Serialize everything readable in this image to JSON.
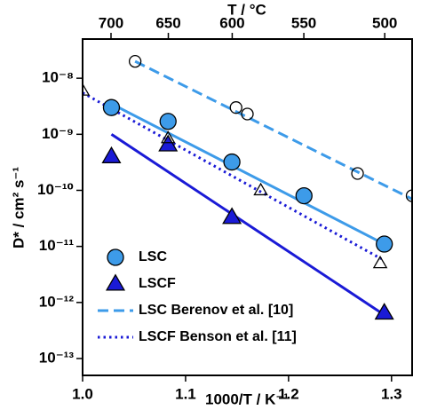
{
  "chart_data": {
    "type": "scatter",
    "xlabel": "1000/T / K⁻¹",
    "ylabel": "D* / cm² s⁻¹",
    "x2label": "T / °C",
    "xlim": [
      1.0,
      1.32
    ],
    "xticks": [
      {
        "value": 1.0,
        "label": "1.0"
      },
      1.1,
      1.2,
      1.3
    ],
    "x2ticks": [
      700,
      650,
      600,
      550,
      500
    ],
    "log_y": true,
    "ylim": [
      5e-14,
      5e-08
    ],
    "yticks": [
      {
        "value": 1e-13,
        "label": "10⁻¹³"
      },
      {
        "value": 1e-12,
        "label": "10⁻¹²"
      },
      {
        "value": 1e-11,
        "label": "10⁻¹¹"
      },
      {
        "value": 1e-10,
        "label": "10⁻¹⁰"
      },
      {
        "value": 1e-09,
        "label": "10⁻⁹"
      },
      {
        "value": 1e-08,
        "label": "10⁻⁸"
      }
    ],
    "legend": "lower left",
    "series": [
      {
        "name": "LSC",
        "color": "#3d9be9",
        "marker": "circle",
        "filled": true,
        "line": "none",
        "x": [
          1.028,
          1.083,
          1.145,
          1.215,
          1.293
        ],
        "values": [
          3e-09,
          1.7e-09,
          3.2e-10,
          8e-11,
          1.1e-11
        ],
        "fit": {
          "color": "#3d9be9",
          "style": "solid",
          "x": [
            1.028,
            1.293
          ],
          "values": [
            3.5e-09,
            1.1e-11
          ]
        }
      },
      {
        "name": "LSCF",
        "color": "#1a1ad6",
        "marker": "triangle",
        "filled": true,
        "line": "none",
        "x": [
          1.028,
          1.083,
          1.145,
          1.293
        ],
        "values": [
          4e-10,
          6.5e-10,
          3.3e-11,
          6.5e-13
        ],
        "fit": {
          "color": "#1a1ad6",
          "style": "solid",
          "x": [
            1.028,
            1.293
          ],
          "values": [
            1e-09,
            6e-13
          ]
        }
      },
      {
        "name": "LSC Berenov et al. [10]",
        "color": "#3d9be9",
        "marker": "circle",
        "filled": false,
        "line": "dashed",
        "x": [
          1.051,
          1.149,
          1.16,
          1.267,
          1.32
        ],
        "values": [
          2e-08,
          3e-09,
          2.3e-09,
          2e-10,
          8e-11
        ],
        "fit": {
          "color": "#3d9be9",
          "style": "dashed",
          "x": [
            1.051,
            1.32
          ],
          "values": [
            2e-08,
            7e-11
          ]
        }
      },
      {
        "name": "LSCF Benson et al. [11]",
        "color": "#1a1ad6",
        "marker": "triangle",
        "filled": false,
        "line": "dotted",
        "x": [
          1.0,
          1.083,
          1.173,
          1.289
        ],
        "values": [
          6e-09,
          8.5e-10,
          1e-10,
          5e-12
        ],
        "fit": {
          "color": "#1a1ad6",
          "style": "dotted",
          "x": [
            1.0,
            1.29
          ],
          "values": [
            5.5e-09,
            6e-12
          ]
        }
      }
    ]
  }
}
